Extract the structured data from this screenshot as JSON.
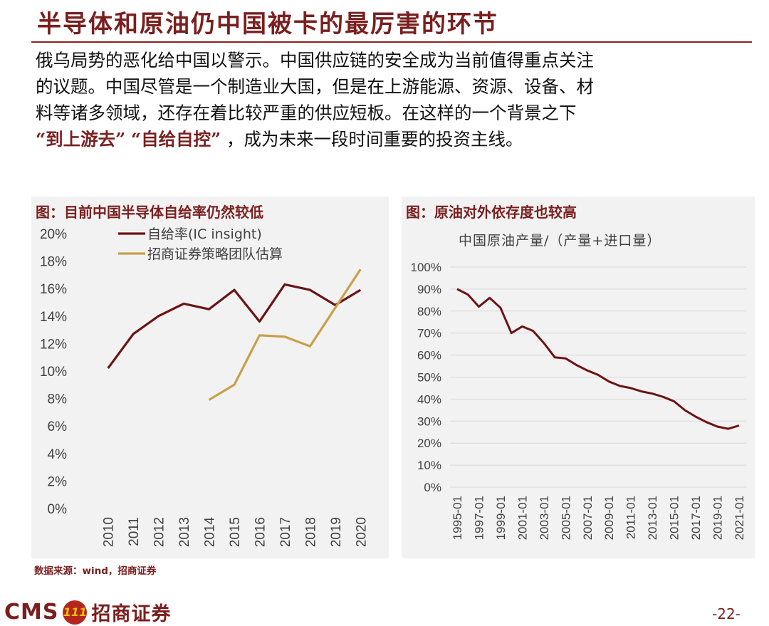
{
  "slide": {
    "title": "半导体和原油仍中国被卡的最厉害的环节",
    "paragraph_lines": [
      "俄乌局势的恶化给中国以警示。中国供应链的安全成为当前值得重点关注",
      "的议题。中国尽管是一个制造业大国，但是在上游能源、资源、设备、材",
      "料等诸多领域，还存在着比较严重的供应短板。在这样的一个背景之下"
    ],
    "paragraph_last": {
      "quote1": "“到上游去”",
      "quote2": "“自给自控”",
      "rest": "，成为未来一段时间重要的投资主线。"
    },
    "source": "数据来源：wind，招商证券",
    "logo_text": "CMS",
    "logo_mark": "111",
    "logo_cn": "招商证券",
    "page_number": "-22-"
  },
  "colors": {
    "brand": "#7a1f1f",
    "series_dark": "#6b1414",
    "series_gold": "#c8a04a",
    "panel_bg": "#f2f2f2",
    "grid": "#d9d9d9"
  },
  "chart_data": [
    {
      "type": "line",
      "title": "图：目前中国半导体自给率仍然较低",
      "categories": [
        "2010",
        "2011",
        "2012",
        "2013",
        "2014",
        "2015",
        "2016",
        "2017",
        "2018",
        "2019",
        "2020"
      ],
      "series": [
        {
          "name": "自给率(IC insight)",
          "values": [
            10.2,
            12.7,
            14.0,
            14.9,
            14.5,
            15.9,
            13.6,
            16.3,
            15.9,
            14.8,
            15.9
          ]
        },
        {
          "name": "招商证券策略团队估算",
          "values": [
            null,
            null,
            null,
            null,
            7.9,
            9.0,
            12.6,
            12.5,
            11.8,
            14.6,
            17.4
          ]
        }
      ],
      "ylim": [
        0,
        20
      ],
      "yticks": [
        "0%",
        "2%",
        "4%",
        "6%",
        "8%",
        "10%",
        "12%",
        "14%",
        "16%",
        "18%",
        "20%"
      ],
      "grid": true,
      "legend": "top-left"
    },
    {
      "type": "line",
      "title": "图：原油对外依存度也较高",
      "subtitle": "中国原油产量/（产量+进口量）",
      "x": [
        "1995-01",
        "1996-01",
        "1997-01",
        "1998-01",
        "1999-01",
        "2000-01",
        "2001-01",
        "2002-01",
        "2003-01",
        "2004-01",
        "2005-01",
        "2006-01",
        "2007-01",
        "2008-01",
        "2009-01",
        "2010-01",
        "2011-01",
        "2012-01",
        "2013-01",
        "2014-01",
        "2015-01",
        "2016-01",
        "2017-01",
        "2018-01",
        "2019-01",
        "2020-01",
        "2021-01"
      ],
      "xtick_labels": [
        "1995-01",
        "1997-01",
        "1999-01",
        "2001-01",
        "2003-01",
        "2005-01",
        "2007-01",
        "2009-01",
        "2011-01",
        "2013-01",
        "2015-01",
        "2017-01",
        "2019-01",
        "2021-01"
      ],
      "series": [
        {
          "name": "中国原油产量/（产量+进口量）",
          "values": [
            90,
            87.5,
            82,
            86,
            81.5,
            70,
            73,
            71,
            65.5,
            59,
            58.5,
            55.5,
            53,
            51,
            48,
            46,
            45,
            43.5,
            42.5,
            41,
            39,
            35,
            32,
            29.5,
            27.5,
            26.5,
            28
          ]
        }
      ],
      "ylim": [
        0,
        100
      ],
      "yticks": [
        "0%",
        "10%",
        "20%",
        "30%",
        "40%",
        "50%",
        "60%",
        "70%",
        "80%",
        "90%",
        "100%"
      ],
      "grid": true
    }
  ]
}
